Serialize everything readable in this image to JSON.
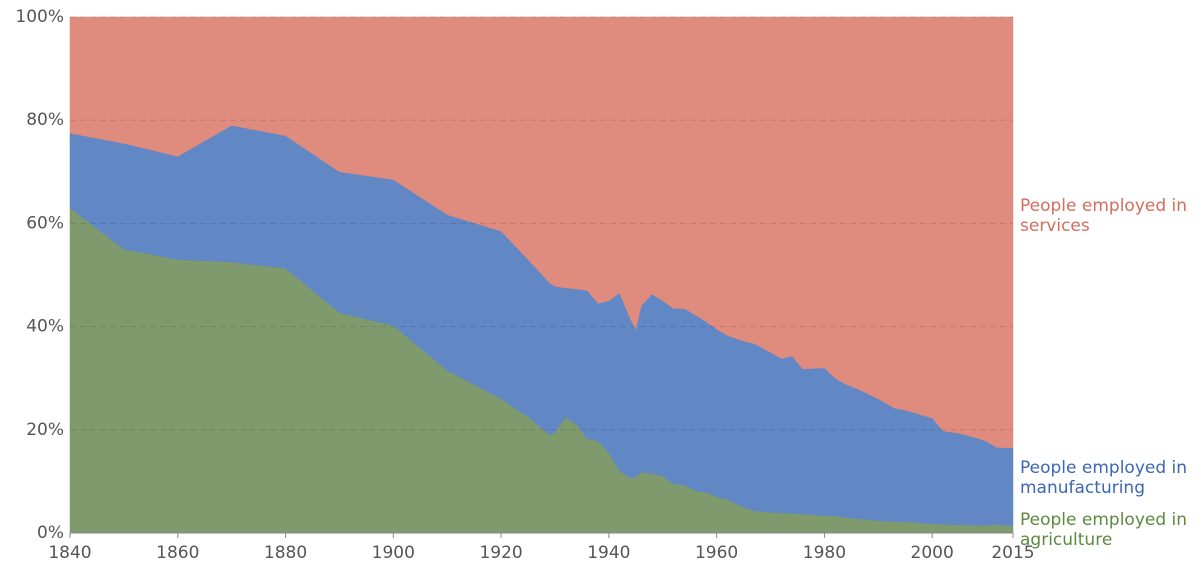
{
  "chart_data": {
    "type": "stacked-area",
    "x": [
      1840,
      1850,
      1860,
      1870,
      1880,
      1890,
      1900,
      1910,
      1920,
      1925,
      1929,
      1930,
      1932,
      1934,
      1936,
      1938,
      1940,
      1942,
      1944,
      1945,
      1946,
      1948,
      1950,
      1952,
      1954,
      1956,
      1958,
      1960,
      1962,
      1965,
      1967,
      1970,
      1972,
      1974,
      1976,
      1980,
      1982,
      1984,
      1986,
      1990,
      1993,
      1995,
      2000,
      2002,
      2005,
      2008,
      2010,
      2012,
      2015
    ],
    "series": [
      {
        "name": "People employed in agriculture",
        "color": "#7f9a6c",
        "label_color": "#5b8a3e",
        "values": [
          63,
          55,
          53,
          52.5,
          51.3,
          42.7,
          40.2,
          31.5,
          26,
          22.5,
          19,
          19.5,
          22.5,
          21,
          18.3,
          17.8,
          15.5,
          12,
          10.7,
          10.8,
          11.8,
          11.5,
          11,
          9.5,
          9.3,
          8.2,
          7.9,
          7,
          6.5,
          5,
          4.3,
          4,
          3.9,
          3.8,
          3.7,
          3.4,
          3.3,
          3,
          2.8,
          2.4,
          2.2,
          2.2,
          1.8,
          1.7,
          1.6,
          1.5,
          1.5,
          1.6,
          1.4
        ]
      },
      {
        "name": "People employed in manufacturing",
        "color": "#6187c4",
        "label_color": "#3b67b4",
        "values": [
          14.5,
          20.5,
          20,
          26.5,
          25.7,
          27.3,
          28.3,
          30.2,
          32.5,
          30.5,
          29.5,
          28.3,
          25,
          26.3,
          28.7,
          26.7,
          29.5,
          34.5,
          30.8,
          28.7,
          32.2,
          34.8,
          34,
          34,
          34.2,
          34.1,
          33.1,
          32.5,
          31.8,
          32.2,
          32.4,
          31,
          29.9,
          30.5,
          28.1,
          28.6,
          26.7,
          25.8,
          25.2,
          23.6,
          22,
          21.6,
          20.5,
          18.1,
          17.7,
          17,
          16.3,
          15,
          15.1
        ]
      },
      {
        "name": "People employed in services",
        "color": "#df8b7d",
        "label_color": "#d46d5b",
        "values": [
          22.5,
          24.5,
          27,
          21,
          23,
          30,
          31.5,
          38.3,
          41.5,
          47,
          51.5,
          52.2,
          52.5,
          52.7,
          53,
          55.5,
          55,
          53.5,
          58.5,
          60.5,
          56,
          53.7,
          55,
          56.5,
          56.5,
          57.7,
          59,
          60.5,
          61.7,
          62.8,
          63.3,
          65,
          66.2,
          65.7,
          68.2,
          68,
          70,
          71.2,
          72,
          74,
          75.8,
          76.2,
          77.7,
          80.2,
          80.7,
          81.5,
          82.2,
          83.4,
          83.5
        ]
      }
    ],
    "xlim": [
      1840,
      2015
    ],
    "xticks": [
      1840,
      1860,
      1880,
      1900,
      1920,
      1940,
      1960,
      1980,
      2000,
      2015
    ],
    "ylim": [
      0,
      100
    ],
    "yticks": [
      {
        "value": 0,
        "label": "0%"
      },
      {
        "value": 20,
        "label": "20%"
      },
      {
        "value": 40,
        "label": "40%"
      },
      {
        "value": 60,
        "label": "60%"
      },
      {
        "value": 80,
        "label": "80%"
      },
      {
        "value": 100,
        "label": "100%"
      }
    ],
    "grid": true
  }
}
